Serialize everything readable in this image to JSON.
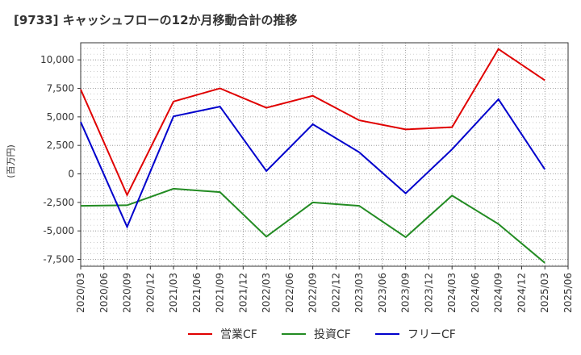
{
  "chart_data": {
    "type": "line",
    "title": "[9733]  キャッシュフローの12か月移動合計の推移",
    "ylabel": "(百万円)",
    "xlabel": "",
    "grid": true,
    "legend_position": "bottom",
    "x_ticks": [
      "2020/03",
      "2020/06",
      "2020/09",
      "2020/12",
      "2021/03",
      "2021/06",
      "2021/09",
      "2021/12",
      "2022/03",
      "2022/06",
      "2022/09",
      "2022/12",
      "2023/03",
      "2023/06",
      "2023/09",
      "2023/12",
      "2024/03",
      "2024/06",
      "2024/09",
      "2024/12",
      "2025/03",
      "2025/06"
    ],
    "y_ticks": [
      10000,
      7500,
      5000,
      2500,
      0,
      -2500,
      -5000,
      -7500
    ],
    "y_tick_labels": [
      "10,000",
      "7,500",
      "5,000",
      "2,500",
      "0",
      "-2,500",
      "-5,000",
      "-7,500"
    ],
    "ylim": [
      -8100,
      11500
    ],
    "series": [
      {
        "name": "営業CF",
        "color": "#e00000",
        "x": [
          "2020/03",
          "2020/09",
          "2021/03",
          "2021/09",
          "2022/03",
          "2022/09",
          "2023/03",
          "2023/09",
          "2024/03",
          "2024/09",
          "2025/03"
        ],
        "values": [
          7400,
          -1850,
          6350,
          7500,
          5800,
          6850,
          4700,
          3900,
          4100,
          10950,
          8200
        ]
      },
      {
        "name": "投資CF",
        "color": "#228b22",
        "x": [
          "2020/03",
          "2020/09",
          "2021/03",
          "2021/09",
          "2022/03",
          "2022/09",
          "2023/03",
          "2023/09",
          "2024/03",
          "2024/09",
          "2025/03"
        ],
        "values": [
          -2800,
          -2750,
          -1300,
          -1600,
          -5500,
          -2500,
          -2800,
          -5550,
          -1900,
          -4400,
          -7800
        ]
      },
      {
        "name": "フリーCF",
        "color": "#0000cc",
        "x": [
          "2020/03",
          "2020/09",
          "2021/03",
          "2021/09",
          "2022/03",
          "2022/09",
          "2023/03",
          "2023/09",
          "2024/03",
          "2024/09",
          "2025/03"
        ],
        "values": [
          4550,
          -4650,
          5050,
          5900,
          250,
          4350,
          1900,
          -1700,
          2150,
          6550,
          400
        ]
      }
    ]
  }
}
